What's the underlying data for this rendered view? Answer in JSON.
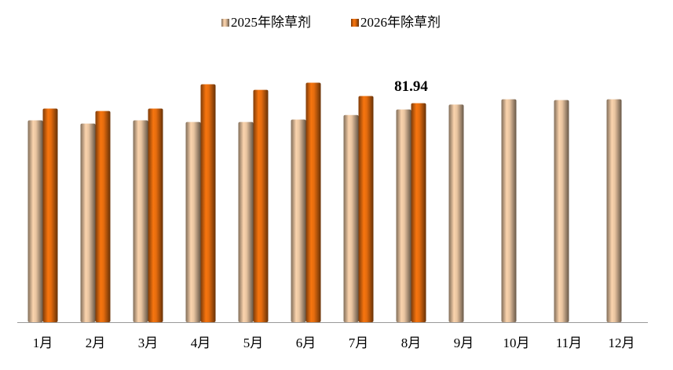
{
  "chart_data": {
    "type": "bar",
    "categories": [
      "1月",
      "2月",
      "3月",
      "4月",
      "5月",
      "6月",
      "7月",
      "8月",
      "9月",
      "10月",
      "11月",
      "12月"
    ],
    "series": [
      {
        "name": "2025年除草剂",
        "color": "#e8c4a0",
        "values": [
          75.5,
          74.3,
          75.5,
          74.9,
          74.9,
          75.8,
          77.5,
          79.6,
          81.4,
          83.4,
          83.1,
          83.4
        ]
      },
      {
        "name": "2026年除草剂",
        "color": "#e56c0e",
        "values": [
          79.9,
          79.0,
          79.9,
          89.0,
          86.9,
          89.6,
          84.6,
          81.94,
          null,
          null,
          null,
          null
        ],
        "data_labels": "last"
      }
    ],
    "ylim": [
      0,
      100
    ],
    "legend": "top"
  }
}
